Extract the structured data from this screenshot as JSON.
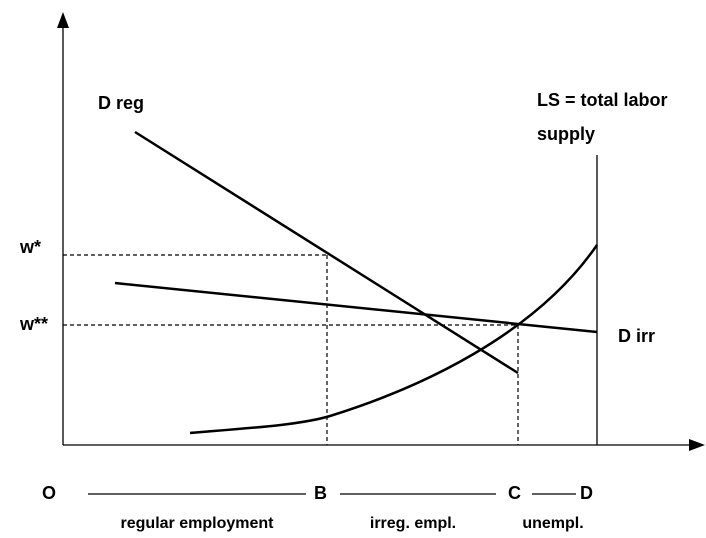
{
  "curves": {
    "d_reg": "D reg",
    "d_irr": "D irr",
    "ls": [
      "LS = total labor",
      "supply"
    ]
  },
  "wages": {
    "w_star": "w*",
    "w_star_star": "w**"
  },
  "x_points": {
    "o": "O",
    "b": "B",
    "c": "C",
    "d": "D"
  },
  "segments": {
    "regular": "regular employment",
    "irregular": "irreg. empl.",
    "unemployed": "unempl."
  }
}
